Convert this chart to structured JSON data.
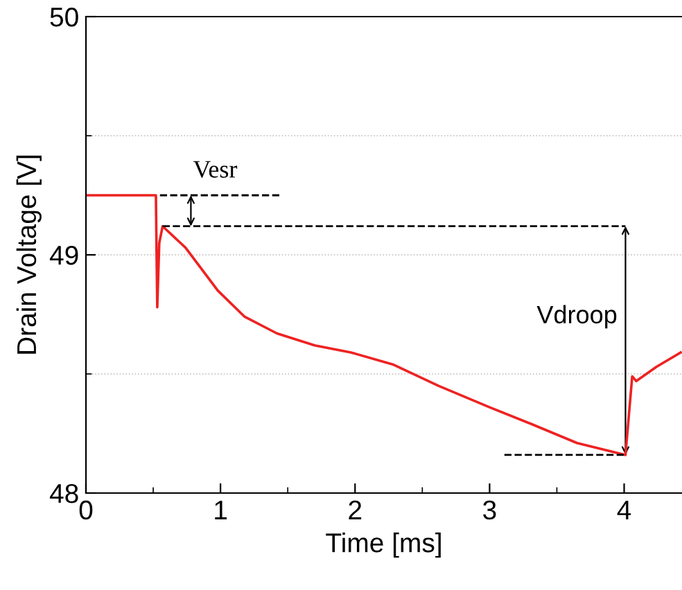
{
  "chart_data": {
    "type": "line",
    "xlabel": "Time [ms]",
    "ylabel": "Drain Voltage [V]",
    "xlim": [
      0,
      4.43
    ],
    "ylim": [
      48,
      50
    ],
    "xticks": [
      0,
      1,
      2,
      3,
      4
    ],
    "yticks": [
      48,
      49,
      50
    ],
    "grid": "y",
    "legend": false,
    "marker": "none",
    "line_style": "solid",
    "series": [
      {
        "color": "#ee2222",
        "x": [
          0,
          0.52,
          0.525,
          0.53,
          0.545,
          0.57,
          0.74,
          0.98,
          1.18,
          1.42,
          1.7,
          1.97,
          2.28,
          2.62,
          3.0,
          3.31,
          3.65,
          4.01,
          4.06,
          4.09,
          4.24,
          4.42
        ],
        "values": [
          49.25,
          49.25,
          49.0,
          48.78,
          49.05,
          49.12,
          49.03,
          48.85,
          48.74,
          48.67,
          48.62,
          48.59,
          48.54,
          48.45,
          48.36,
          48.29,
          48.21,
          48.16,
          48.49,
          48.47,
          48.53,
          48.59
        ]
      }
    ],
    "ref_lines": [
      {
        "axis": "y",
        "value": 49.25,
        "color": "#000000",
        "line_style": "dashed"
      },
      {
        "axis": "y",
        "value": 49.12,
        "color": "#000000",
        "line_style": "dashed"
      },
      {
        "axis": "y",
        "value": 48.16,
        "color": "#000000",
        "line_style": "dashed"
      }
    ],
    "annotations": [
      "Vesr",
      "Vdroop"
    ]
  }
}
